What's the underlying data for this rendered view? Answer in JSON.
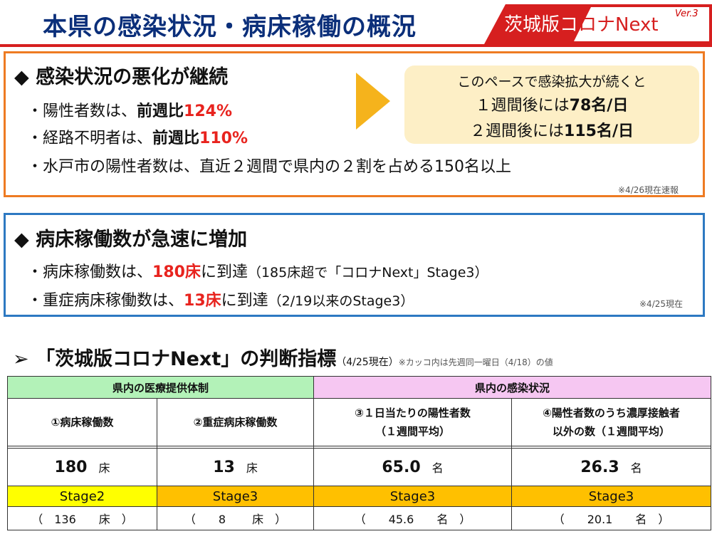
{
  "header": {
    "title": "本県の感染状況・病床稼働の概況",
    "brand": "茨城版コロナNext",
    "version": "Ver.3",
    "colors": {
      "title": "#0b2f7a",
      "brand": "#d61f1f"
    }
  },
  "section1": {
    "heading": "◆ 感染状況の悪化が継続",
    "bullet1": {
      "prefix": "・陽性者数は、",
      "bold": "前週比",
      "value": "124%"
    },
    "bullet2": {
      "prefix": "・経路不明者は、",
      "bold": "前週比",
      "value": "110%"
    },
    "bullet3": "・水戸市の陽性者数は、直近２週間で県内の２割を占める150名以上",
    "note": "※4/26現在速報",
    "projection": {
      "line1": "このペースで感染拡大が続くと",
      "line2_prefix": "１週間後には",
      "line2_value": "78名/日",
      "line3_prefix": "２週間後には",
      "line3_value": "115名/日"
    },
    "border_color": "#ee7b22"
  },
  "section2": {
    "heading": "◆ 病床稼働数が急速に増加",
    "bullet1": {
      "prefix": "・病床稼働数は、",
      "value": "180床",
      "suffix": "に到達",
      "paren": "（185床超で「コロナNext」Stage3）"
    },
    "bullet2": {
      "prefix": "・重症病床稼働数は、",
      "value": "13床",
      "suffix": "に到達",
      "paren": "（2/19以来のStage3）"
    },
    "note": "※4/25現在",
    "border_color": "#2d79c2"
  },
  "indicators": {
    "title": "➢ 「茨城版コロナNext」の判断指標",
    "date": "（4/25現在）",
    "note": "※カッコ内は先週同一曜日（4/18）の値",
    "groups": [
      "県内の医療提供体制",
      "県内の感染状況"
    ],
    "columns": [
      {
        "line1": "①病床稼働数",
        "line2": "",
        "value": "180",
        "unit": "床",
        "stage": "Stage2",
        "prev": "（　136　　床　）"
      },
      {
        "line1": "②重症病床稼働数",
        "line2": "",
        "value": "13",
        "unit": "床",
        "stage": "Stage3",
        "prev": "（　　8　　 床　）"
      },
      {
        "line1": "③１日当たりの陽性者数",
        "line2": "（１週間平均）",
        "value": "65.0",
        "unit": "名",
        "stage": "Stage3",
        "prev": "（　　45.6　　名　）"
      },
      {
        "line1": "④陽性者数のうち濃厚接触者",
        "line2": "以外の数（１週間平均）",
        "value": "26.3",
        "unit": "名",
        "stage": "Stage3",
        "prev": "（　　20.1　　名　）"
      }
    ],
    "colors": {
      "medical": "#b3f2b8",
      "infection": "#f6c7f2",
      "stage2": "#ffff00",
      "stage3": "#ffc000"
    }
  }
}
